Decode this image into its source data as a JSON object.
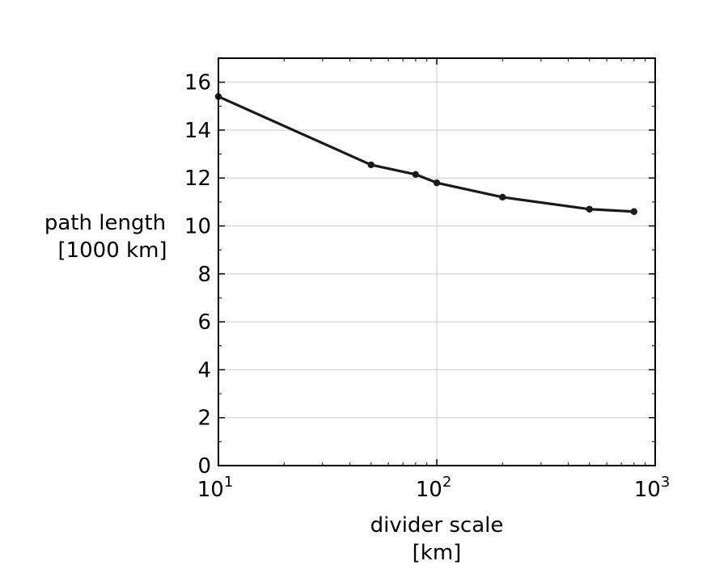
{
  "chart_data": {
    "type": "line",
    "title": "",
    "xlabel_lines": [
      "divider scale",
      "[km]"
    ],
    "ylabel_lines": [
      "path length",
      "[1000 km]"
    ],
    "x_scale": "log",
    "xlim": [
      10,
      1000
    ],
    "ylim": [
      0,
      17
    ],
    "x_ticks": [
      {
        "value": 10,
        "base": "10",
        "exp": "1"
      },
      {
        "value": 100,
        "base": "10",
        "exp": "2"
      },
      {
        "value": 1000,
        "base": "10",
        "exp": "3"
      }
    ],
    "y_ticks": [
      0,
      2,
      4,
      6,
      8,
      10,
      12,
      14,
      16
    ],
    "grid": true,
    "legend": "none",
    "colors": {
      "line": "#1a1a1a",
      "grid": "#cccccc",
      "axes": "#000000"
    },
    "series": [
      {
        "x": [
          10,
          50,
          80,
          100,
          200,
          500,
          800
        ],
        "y": [
          15.4,
          12.55,
          12.15,
          11.8,
          11.2,
          10.7,
          10.6
        ]
      }
    ]
  }
}
